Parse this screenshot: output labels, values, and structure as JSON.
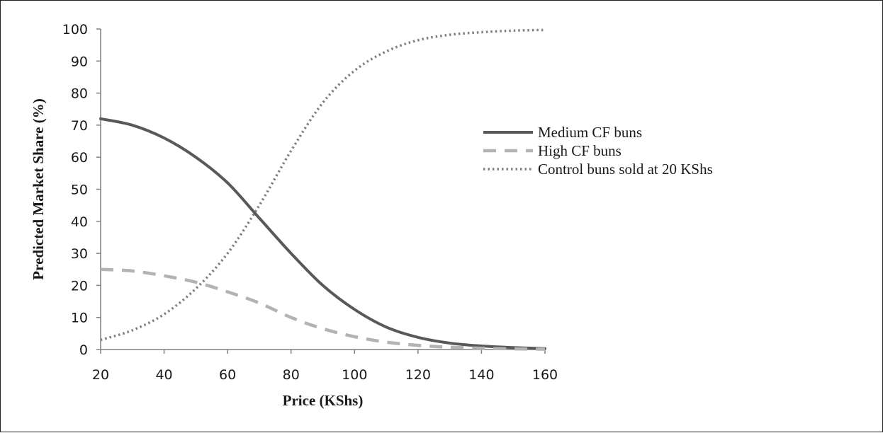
{
  "chart_data": {
    "type": "line",
    "title": "",
    "xlabel": "Price (KShs)",
    "ylabel": "Predicted Market Share (%)",
    "xlim": [
      20,
      160
    ],
    "ylim": [
      0,
      100
    ],
    "x_ticks": [
      20,
      40,
      60,
      80,
      100,
      120,
      140,
      160
    ],
    "y_ticks": [
      0,
      10,
      20,
      30,
      40,
      50,
      60,
      70,
      80,
      90,
      100
    ],
    "grid": false,
    "legend_position": "right",
    "x": [
      20,
      30,
      40,
      50,
      60,
      70,
      80,
      90,
      100,
      110,
      120,
      130,
      140,
      150,
      160
    ],
    "series": [
      {
        "name": "Medium CF buns",
        "style": "solid",
        "color": "#595959",
        "values": [
          72,
          70,
          66,
          60,
          52,
          41,
          30,
          20,
          12.5,
          7,
          3.8,
          2,
          1.1,
          0.6,
          0.3
        ]
      },
      {
        "name": "High CF buns",
        "style": "dashed",
        "color": "#b3b3b3",
        "values": [
          25,
          24.5,
          23,
          21,
          18,
          14.5,
          10,
          6.5,
          4,
          2.3,
          1.3,
          0.7,
          0.4,
          0.2,
          0.1
        ]
      },
      {
        "name": "Control buns sold at 20 KShs",
        "style": "dotted",
        "color": "#808080",
        "values": [
          3,
          6,
          11,
          19,
          30,
          45,
          62,
          77,
          87,
          93,
          96.5,
          98.2,
          99,
          99.5,
          99.7
        ]
      }
    ]
  }
}
